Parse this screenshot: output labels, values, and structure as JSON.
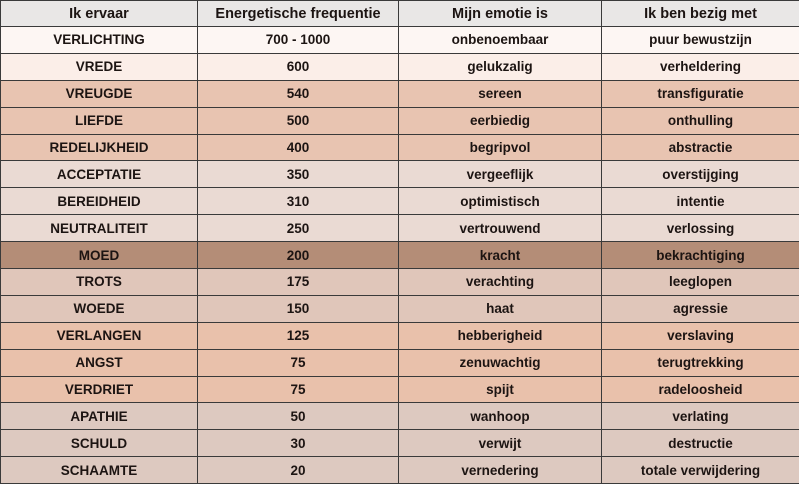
{
  "headers": [
    "Ik ervaar",
    "Energetische frequentie",
    "Mijn emotie is",
    "Ik ben bezig met"
  ],
  "rows": [
    {
      "state": "VERLICHTING",
      "freq": "700 - 1000",
      "emotion": "onbenoembaar",
      "activity": "puur bewustzijn",
      "color": "#fdf6f3"
    },
    {
      "state": "VREDE",
      "freq": "600",
      "emotion": "gelukzalig",
      "activity": "verheldering",
      "color": "#fbeee8"
    },
    {
      "state": "VREUGDE",
      "freq": "540",
      "emotion": "sereen",
      "activity": "transfiguratie",
      "color": "#e8c4b1"
    },
    {
      "state": "LIEFDE",
      "freq": "500",
      "emotion": "eerbiedig",
      "activity": "onthulling",
      "color": "#e8c4b1"
    },
    {
      "state": "REDELIJKHEID",
      "freq": "400",
      "emotion": "begripvol",
      "activity": "abstractie",
      "color": "#e8c4b1"
    },
    {
      "state": "ACCEPTATIE",
      "freq": "350",
      "emotion": "vergeeflijk",
      "activity": "overstijging",
      "color": "#eadad3"
    },
    {
      "state": "BEREIDHEID",
      "freq": "310",
      "emotion": "optimistisch",
      "activity": "intentie",
      "color": "#eadad3"
    },
    {
      "state": "NEUTRALITEIT",
      "freq": "250",
      "emotion": "vertrouwend",
      "activity": "verlossing",
      "color": "#eadad3"
    },
    {
      "state": "MOED",
      "freq": "200",
      "emotion": "kracht",
      "activity": "bekrachtiging",
      "color": "#b48d77"
    },
    {
      "state": "TROTS",
      "freq": "175",
      "emotion": "verachting",
      "activity": "leeglopen",
      "color": "#e0c6ba"
    },
    {
      "state": "WOEDE",
      "freq": "150",
      "emotion": "haat",
      "activity": "agressie",
      "color": "#e0c6ba"
    },
    {
      "state": "VERLANGEN",
      "freq": "125",
      "emotion": "hebberigheid",
      "activity": "verslaving",
      "color": "#e9c1ab"
    },
    {
      "state": "ANGST",
      "freq": "75",
      "emotion": "zenuwachtig",
      "activity": "terugtrekking",
      "color": "#e9c1ab"
    },
    {
      "state": "VERDRIET",
      "freq": "75",
      "emotion": "spijt",
      "activity": "radeloosheid",
      "color": "#e9c1ab"
    },
    {
      "state": "APATHIE",
      "freq": "50",
      "emotion": "wanhoop",
      "activity": "verlating",
      "color": "#ddc9c0"
    },
    {
      "state": "SCHULD",
      "freq": "30",
      "emotion": "verwijt",
      "activity": "destructie",
      "color": "#ddc9c0"
    },
    {
      "state": "SCHAAMTE",
      "freq": "20",
      "emotion": "vernedering",
      "activity": "totale verwijdering",
      "color": "#ddc9c0"
    }
  ]
}
